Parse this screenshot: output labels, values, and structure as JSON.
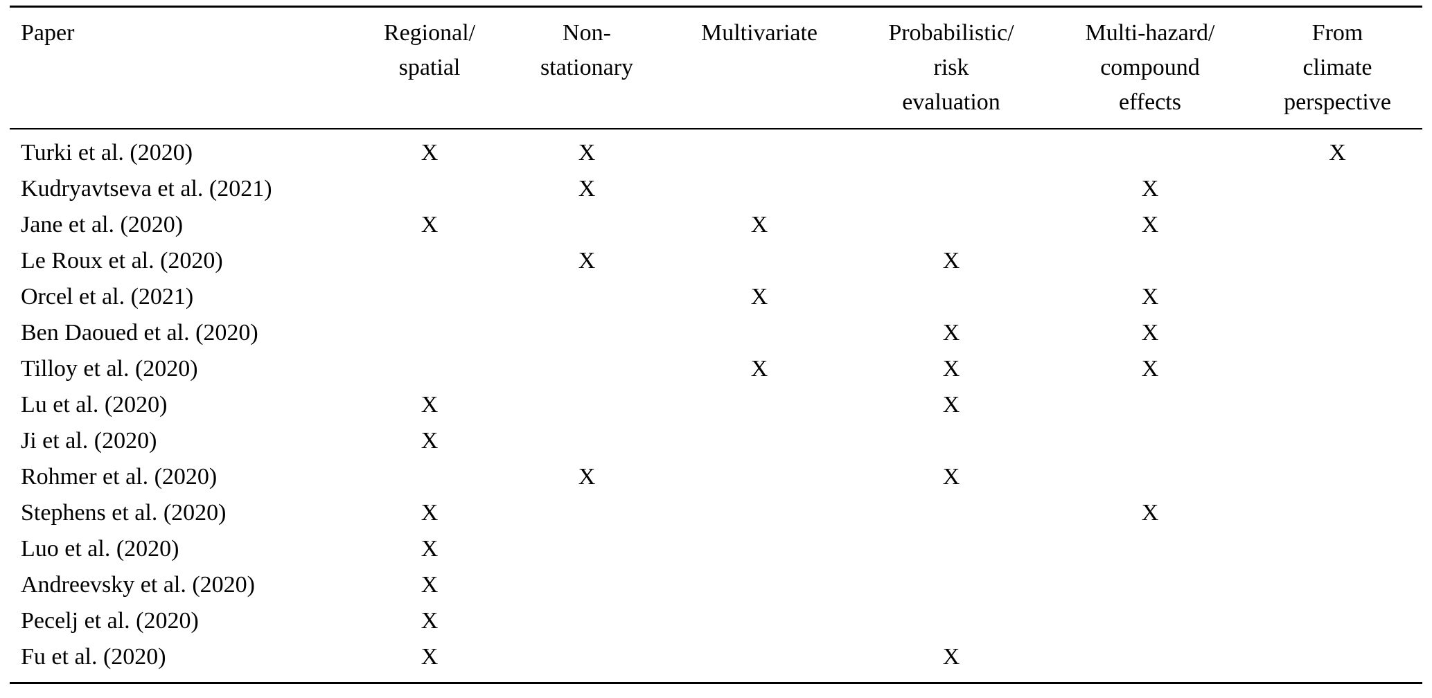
{
  "page": {
    "background_color": "#ffffff",
    "text_color": "#000000"
  },
  "table": {
    "x_mark": "X",
    "columns": [
      {
        "id": "paper",
        "label": "Paper"
      },
      {
        "id": "regional-spatial",
        "label": "Regional/\nspatial"
      },
      {
        "id": "non-stationary",
        "label": "Non-\nstationary"
      },
      {
        "id": "multivariate",
        "label": "Multivariate"
      },
      {
        "id": "probabilistic-risk-evaluation",
        "label": "Probabilistic/\nrisk\nevaluation"
      },
      {
        "id": "multi-hazard-compound-effects",
        "label": "Multi-hazard/\ncompound\neffects"
      },
      {
        "id": "from-climate-perspective",
        "label": "From\nclimate\nperspective"
      }
    ],
    "rows": [
      {
        "paper": "Turki et al. (2020)",
        "marks": [
          true,
          true,
          false,
          false,
          false,
          true
        ]
      },
      {
        "paper": "Kudryavtseva et al. (2021)",
        "marks": [
          false,
          true,
          false,
          false,
          true,
          false
        ]
      },
      {
        "paper": "Jane et al. (2020)",
        "marks": [
          true,
          false,
          true,
          false,
          true,
          false
        ]
      },
      {
        "paper": "Le Roux et al. (2020)",
        "marks": [
          false,
          true,
          false,
          true,
          false,
          false
        ]
      },
      {
        "paper": "Orcel et al. (2021)",
        "marks": [
          false,
          false,
          true,
          false,
          true,
          false
        ]
      },
      {
        "paper": "Ben Daoued et al. (2020)",
        "marks": [
          false,
          false,
          false,
          true,
          true,
          false
        ]
      },
      {
        "paper": "Tilloy et al. (2020)",
        "marks": [
          false,
          false,
          true,
          true,
          true,
          false
        ]
      },
      {
        "paper": "Lu et al. (2020)",
        "marks": [
          true,
          false,
          false,
          true,
          false,
          false
        ]
      },
      {
        "paper": "Ji et al. (2020)",
        "marks": [
          true,
          false,
          false,
          false,
          false,
          false
        ]
      },
      {
        "paper": "Rohmer et al. (2020)",
        "marks": [
          false,
          true,
          false,
          true,
          false,
          false
        ]
      },
      {
        "paper": "Stephens et al. (2020)",
        "marks": [
          true,
          false,
          false,
          false,
          true,
          false
        ]
      },
      {
        "paper": "Luo et al. (2020)",
        "marks": [
          true,
          false,
          false,
          false,
          false,
          false
        ]
      },
      {
        "paper": "Andreevsky et al. (2020)",
        "marks": [
          true,
          false,
          false,
          false,
          false,
          false
        ]
      },
      {
        "paper": "Pecelj et al. (2020)",
        "marks": [
          true,
          false,
          false,
          false,
          false,
          false
        ]
      },
      {
        "paper": "Fu et al. (2020)",
        "marks": [
          true,
          false,
          false,
          true,
          false,
          false
        ]
      }
    ]
  }
}
